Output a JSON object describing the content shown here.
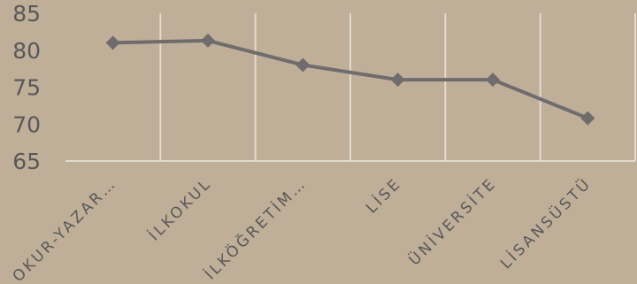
{
  "chart_data": {
    "type": "line",
    "categories": [
      "OKUR-YAZAR…",
      "İLKOKUL",
      "İLKÖĞRETİM…",
      "LİSE",
      "ÜNİVERSİTE",
      "LİSANSÜSTÜ"
    ],
    "series": [
      {
        "values": [
          81.0,
          81.3,
          78.0,
          76.0,
          76.0,
          70.8
        ]
      }
    ],
    "ylim": [
      65,
      85
    ],
    "yticks": [
      65,
      70,
      75,
      80,
      85
    ],
    "grid": "vertical",
    "title": "",
    "xlabel": "",
    "ylabel": "",
    "colors": {
      "background": "#bfae98",
      "line": "#6f6c6d",
      "grid": "#e2dbd0",
      "text": "#595959"
    },
    "marker": "diamond"
  }
}
